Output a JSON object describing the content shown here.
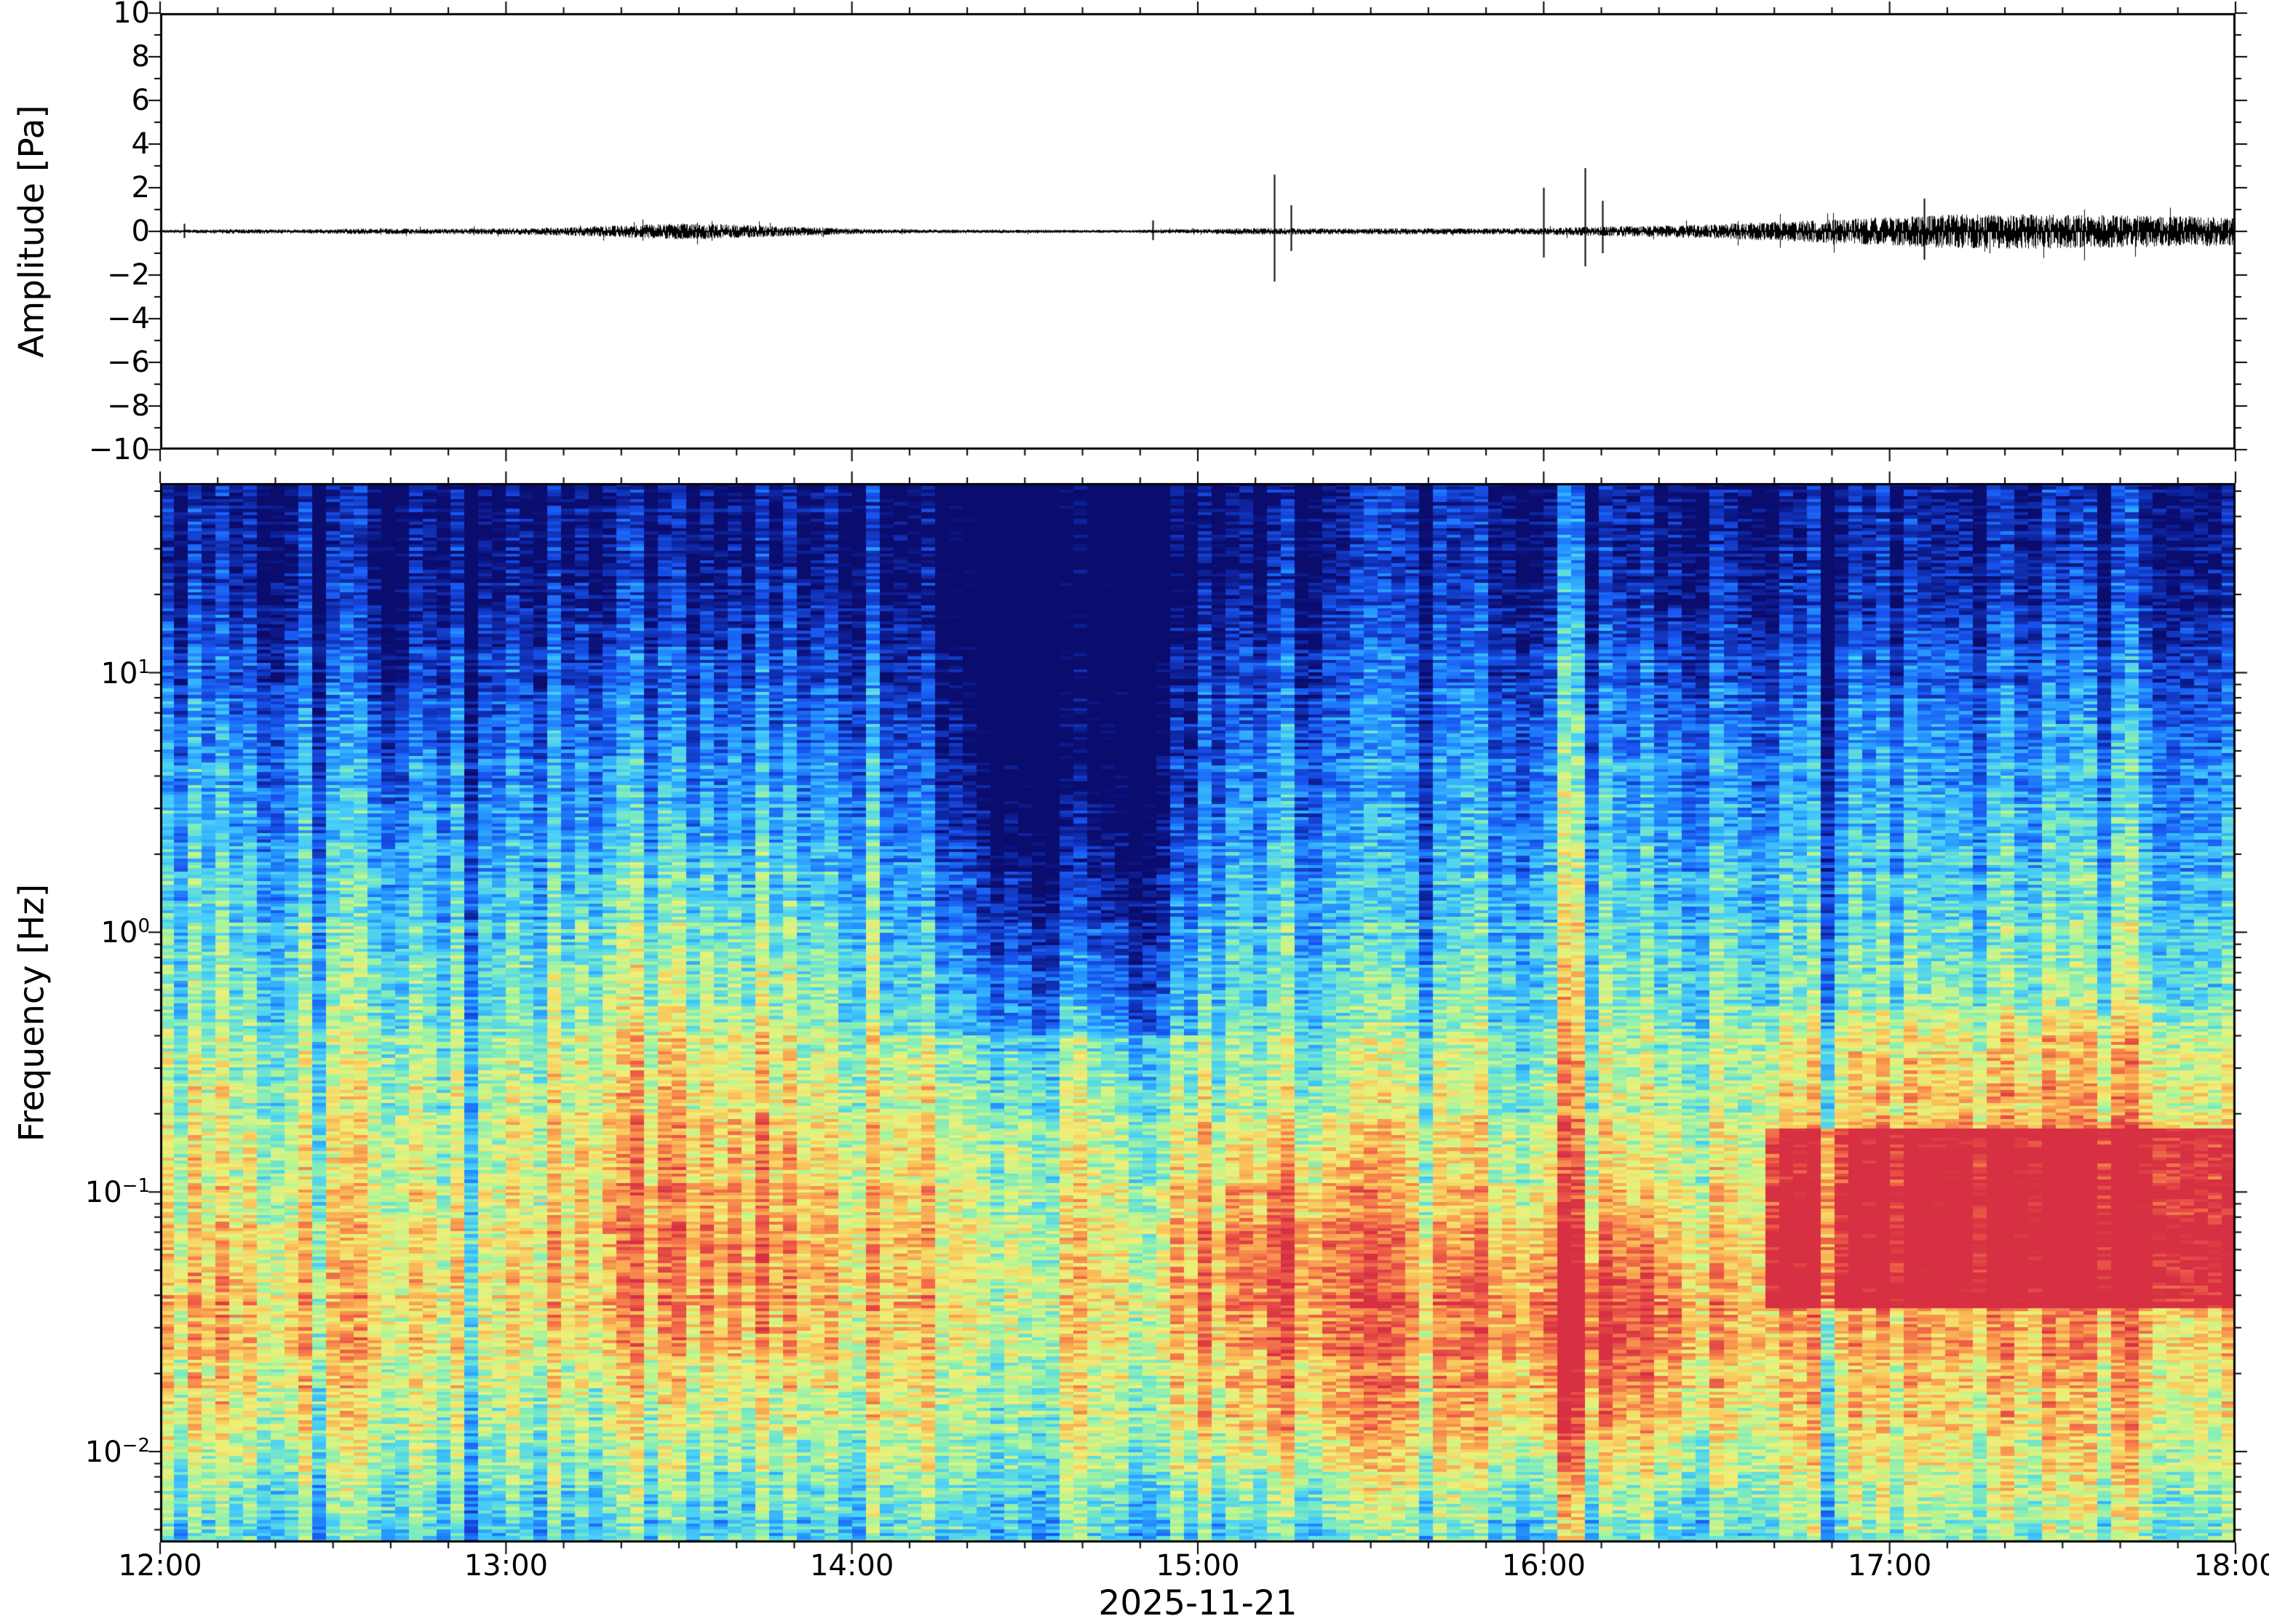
{
  "figure": {
    "background": "#ffffff",
    "frame_color": "#000000"
  },
  "chart_data": [
    {
      "type": "line",
      "panel": "waveform",
      "ylabel": "Amplitude [Pa]",
      "ylim": [
        -10,
        10
      ],
      "x_range_hours": [
        12,
        18
      ],
      "line_color": "#000000",
      "yticks": [
        {
          "label": "10",
          "v": 10
        },
        {
          "label": "8",
          "v": 8
        },
        {
          "label": "6",
          "v": 6
        },
        {
          "label": "4",
          "v": 4
        },
        {
          "label": "2",
          "v": 2
        },
        {
          "label": "0",
          "v": 0
        },
        {
          "label": "−2",
          "v": -2
        },
        {
          "label": "−4",
          "v": -4
        },
        {
          "label": "−6",
          "v": -6
        },
        {
          "label": "−8",
          "v": -8
        },
        {
          "label": "−10",
          "v": -10
        }
      ],
      "noise_envelope": [
        [
          12.0,
          0.05
        ],
        [
          12.2,
          0.08
        ],
        [
          12.4,
          0.07
        ],
        [
          12.6,
          0.1
        ],
        [
          12.8,
          0.09
        ],
        [
          13.0,
          0.11
        ],
        [
          13.2,
          0.16
        ],
        [
          13.35,
          0.22
        ],
        [
          13.5,
          0.28
        ],
        [
          13.65,
          0.25
        ],
        [
          13.8,
          0.18
        ],
        [
          13.95,
          0.12
        ],
        [
          14.1,
          0.07
        ],
        [
          14.5,
          0.06
        ],
        [
          14.8,
          0.05
        ],
        [
          15.0,
          0.08
        ],
        [
          15.2,
          0.12
        ],
        [
          15.4,
          0.1
        ],
        [
          15.6,
          0.11
        ],
        [
          15.8,
          0.1
        ],
        [
          16.0,
          0.12
        ],
        [
          16.2,
          0.18
        ],
        [
          16.4,
          0.22
        ],
        [
          16.6,
          0.3
        ],
        [
          16.8,
          0.4
        ],
        [
          17.0,
          0.5
        ],
        [
          17.2,
          0.6
        ],
        [
          17.4,
          0.62
        ],
        [
          17.6,
          0.58
        ],
        [
          17.8,
          0.55
        ],
        [
          18.0,
          0.5
        ]
      ],
      "spikes": [
        [
          12.07,
          0.35,
          -0.3
        ],
        [
          14.87,
          0.5,
          -0.4
        ],
        [
          15.22,
          2.6,
          -2.3
        ],
        [
          15.27,
          1.2,
          -0.9
        ],
        [
          16.0,
          2.0,
          -1.2
        ],
        [
          16.12,
          2.9,
          -1.6
        ],
        [
          16.17,
          1.4,
          -1.0
        ],
        [
          17.1,
          1.5,
          -1.3
        ]
      ]
    },
    {
      "type": "heatmap",
      "panel": "spectrogram",
      "ylabel": "Frequency [Hz]",
      "xlabel": "2025-11-21",
      "y_scale": "log",
      "freq_log10_range": [
        -2.35,
        1.73
      ],
      "x_range_hours": [
        12,
        18
      ],
      "xticks": [
        {
          "label": "12:00",
          "h": 12
        },
        {
          "label": "13:00",
          "h": 13
        },
        {
          "label": "14:00",
          "h": 14
        },
        {
          "label": "15:00",
          "h": 15
        },
        {
          "label": "16:00",
          "h": 16
        },
        {
          "label": "17:00",
          "h": 17
        },
        {
          "label": "18:00",
          "h": 18
        }
      ],
      "yticks": [
        {
          "mantissa": "10",
          "exponent": "1",
          "log10": 1
        },
        {
          "mantissa": "10",
          "exponent": "0",
          "log10": 0
        },
        {
          "mantissa": "10",
          "exponent": "−1",
          "log10": -1
        },
        {
          "mantissa": "10",
          "exponent": "−2",
          "log10": -2
        }
      ],
      "colormap_stops": [
        [
          0.0,
          10,
          12,
          110
        ],
        [
          0.1,
          15,
          45,
          175
        ],
        [
          0.2,
          25,
          85,
          240
        ],
        [
          0.3,
          35,
          145,
          255
        ],
        [
          0.4,
          70,
          205,
          250
        ],
        [
          0.5,
          125,
          235,
          190
        ],
        [
          0.58,
          185,
          245,
          145
        ],
        [
          0.66,
          238,
          240,
          120
        ],
        [
          0.74,
          250,
          200,
          92
        ],
        [
          0.82,
          248,
          150,
          78
        ],
        [
          0.9,
          238,
          95,
          72
        ],
        [
          1.0,
          214,
          48,
          66
        ]
      ],
      "freq_profile": [
        [
          -2.35,
          0.42
        ],
        [
          -2.1,
          0.5
        ],
        [
          -1.8,
          0.6
        ],
        [
          -1.4,
          0.68
        ],
        [
          -1.0,
          0.63
        ],
        [
          -0.5,
          0.55
        ],
        [
          0.0,
          0.44
        ],
        [
          0.5,
          0.33
        ],
        [
          1.0,
          0.2
        ],
        [
          1.3,
          0.1
        ],
        [
          1.73,
          0.03
        ]
      ],
      "gauss_features": [
        [
          13.5,
          -0.5,
          0.45,
          0.7,
          0.12
        ],
        [
          13.6,
          -1.3,
          0.5,
          0.5,
          0.15
        ],
        [
          12.3,
          -1.6,
          0.5,
          0.5,
          0.08
        ],
        [
          14.55,
          0.7,
          0.3,
          0.9,
          -0.3
        ],
        [
          14.82,
          0.3,
          0.15,
          0.8,
          -0.15
        ],
        [
          15.25,
          -1.2,
          0.3,
          0.4,
          0.24
        ],
        [
          15.3,
          -1.8,
          0.4,
          0.4,
          0.16
        ],
        [
          16.15,
          -1.55,
          0.4,
          0.5,
          0.28
        ],
        [
          16.08,
          0.0,
          0.04,
          6.0,
          0.2
        ],
        [
          12.67,
          1.1,
          0.07,
          0.8,
          -0.12
        ],
        [
          13.75,
          -0.2,
          0.05,
          3.0,
          0.1
        ],
        [
          17.4,
          -1.0,
          0.5,
          0.6,
          0.1
        ],
        [
          15.6,
          0.2,
          0.2,
          0.7,
          -0.12
        ]
      ],
      "box_features": [
        [
          16.65,
          18.0,
          -1.45,
          -0.75,
          0.3
        ],
        [
          16.6,
          18.0,
          -2.35,
          -0.3,
          0.08
        ],
        [
          14.1,
          15.05,
          -0.4,
          1.73,
          -0.08
        ]
      ],
      "noise": {
        "seed": 42,
        "cell": 0.11,
        "column": 0.12,
        "row": 0.05,
        "grid_cols": 150,
        "grid_rows": 330
      }
    }
  ]
}
